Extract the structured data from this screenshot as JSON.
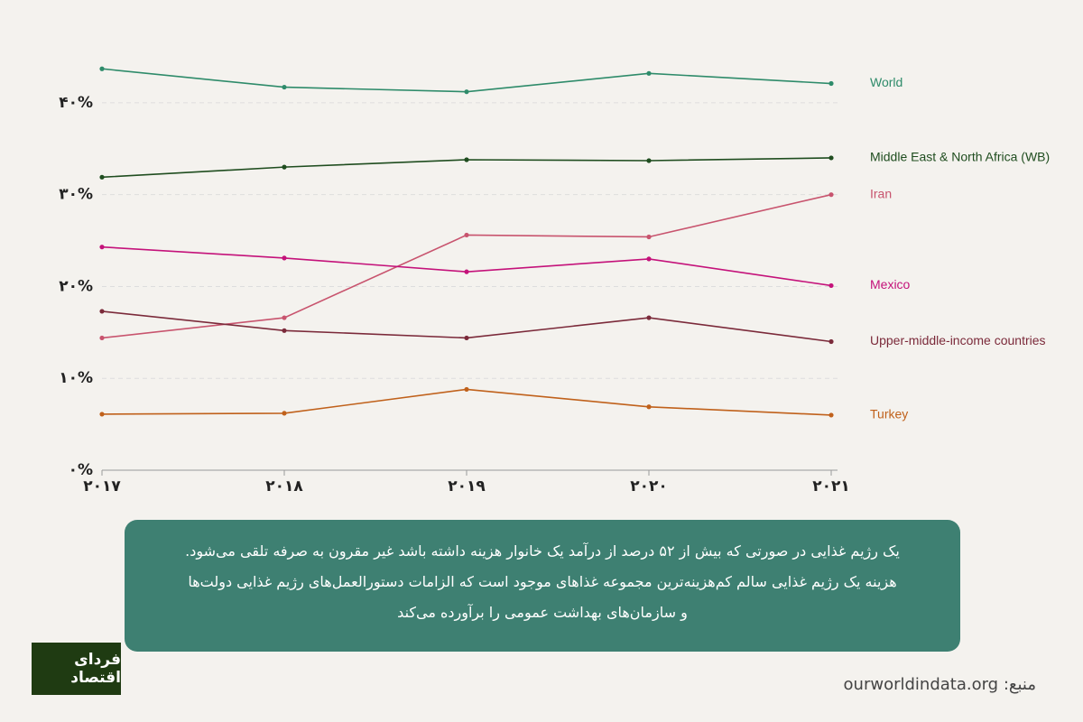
{
  "chart_data": {
    "type": "line",
    "categories": [
      "۲۰۱۷",
      "۲۰۱۸",
      "۲۰۱۹",
      "۲۰۲۰",
      "۲۰۲۱"
    ],
    "ylim": [
      0,
      45
    ],
    "yticks": [
      {
        "value": 0,
        "label": "۰%"
      },
      {
        "value": 10,
        "label": "۱۰%"
      },
      {
        "value": 20,
        "label": "۲۰%"
      },
      {
        "value": 30,
        "label": "۳۰%"
      },
      {
        "value": 40,
        "label": "۴۰%"
      }
    ],
    "grid": true,
    "series": [
      {
        "name": "World",
        "color": "#2e8b6a",
        "values": [
          43.7,
          41.7,
          41.2,
          43.2,
          42.1
        ]
      },
      {
        "name": "Middle East & North Africa (WB)",
        "color": "#1f4d1f",
        "values": [
          31.9,
          33.0,
          33.8,
          33.7,
          34.0
        ]
      },
      {
        "name": "Iran",
        "color": "#c8546e",
        "values": [
          14.4,
          16.6,
          25.6,
          25.4,
          30.0
        ]
      },
      {
        "name": "Mexico",
        "color": "#c4127a",
        "values": [
          24.3,
          23.1,
          21.6,
          23.0,
          20.1
        ]
      },
      {
        "name": "Upper-middle-income countries",
        "color": "#7b2a3a",
        "values": [
          17.3,
          15.2,
          14.4,
          16.6,
          14.0
        ]
      },
      {
        "name": "Turkey",
        "color": "#c0611b",
        "values": [
          6.1,
          6.2,
          8.8,
          6.9,
          6.0
        ]
      }
    ]
  },
  "note": {
    "lines": [
      "یک رژیم غذایی در صورتی که بیش از ۵۲ درصد از درآمد یک خانوار هزینه داشته باشد غیر مقرون به صرفه تلقی می‌شود.",
      "هزینه یک رژیم غذایی سالم کم‌هزینه‌ترین مجموعه غذاهای موجود است که الزامات دستورالعمل‌های رژیم غذایی دولت‌ها",
      "و سازمان‌های بهداشت عمومی را برآورده می‌کند"
    ]
  },
  "source": "منبع: ourworldindata.org",
  "logo": "فردای اقتصاد"
}
